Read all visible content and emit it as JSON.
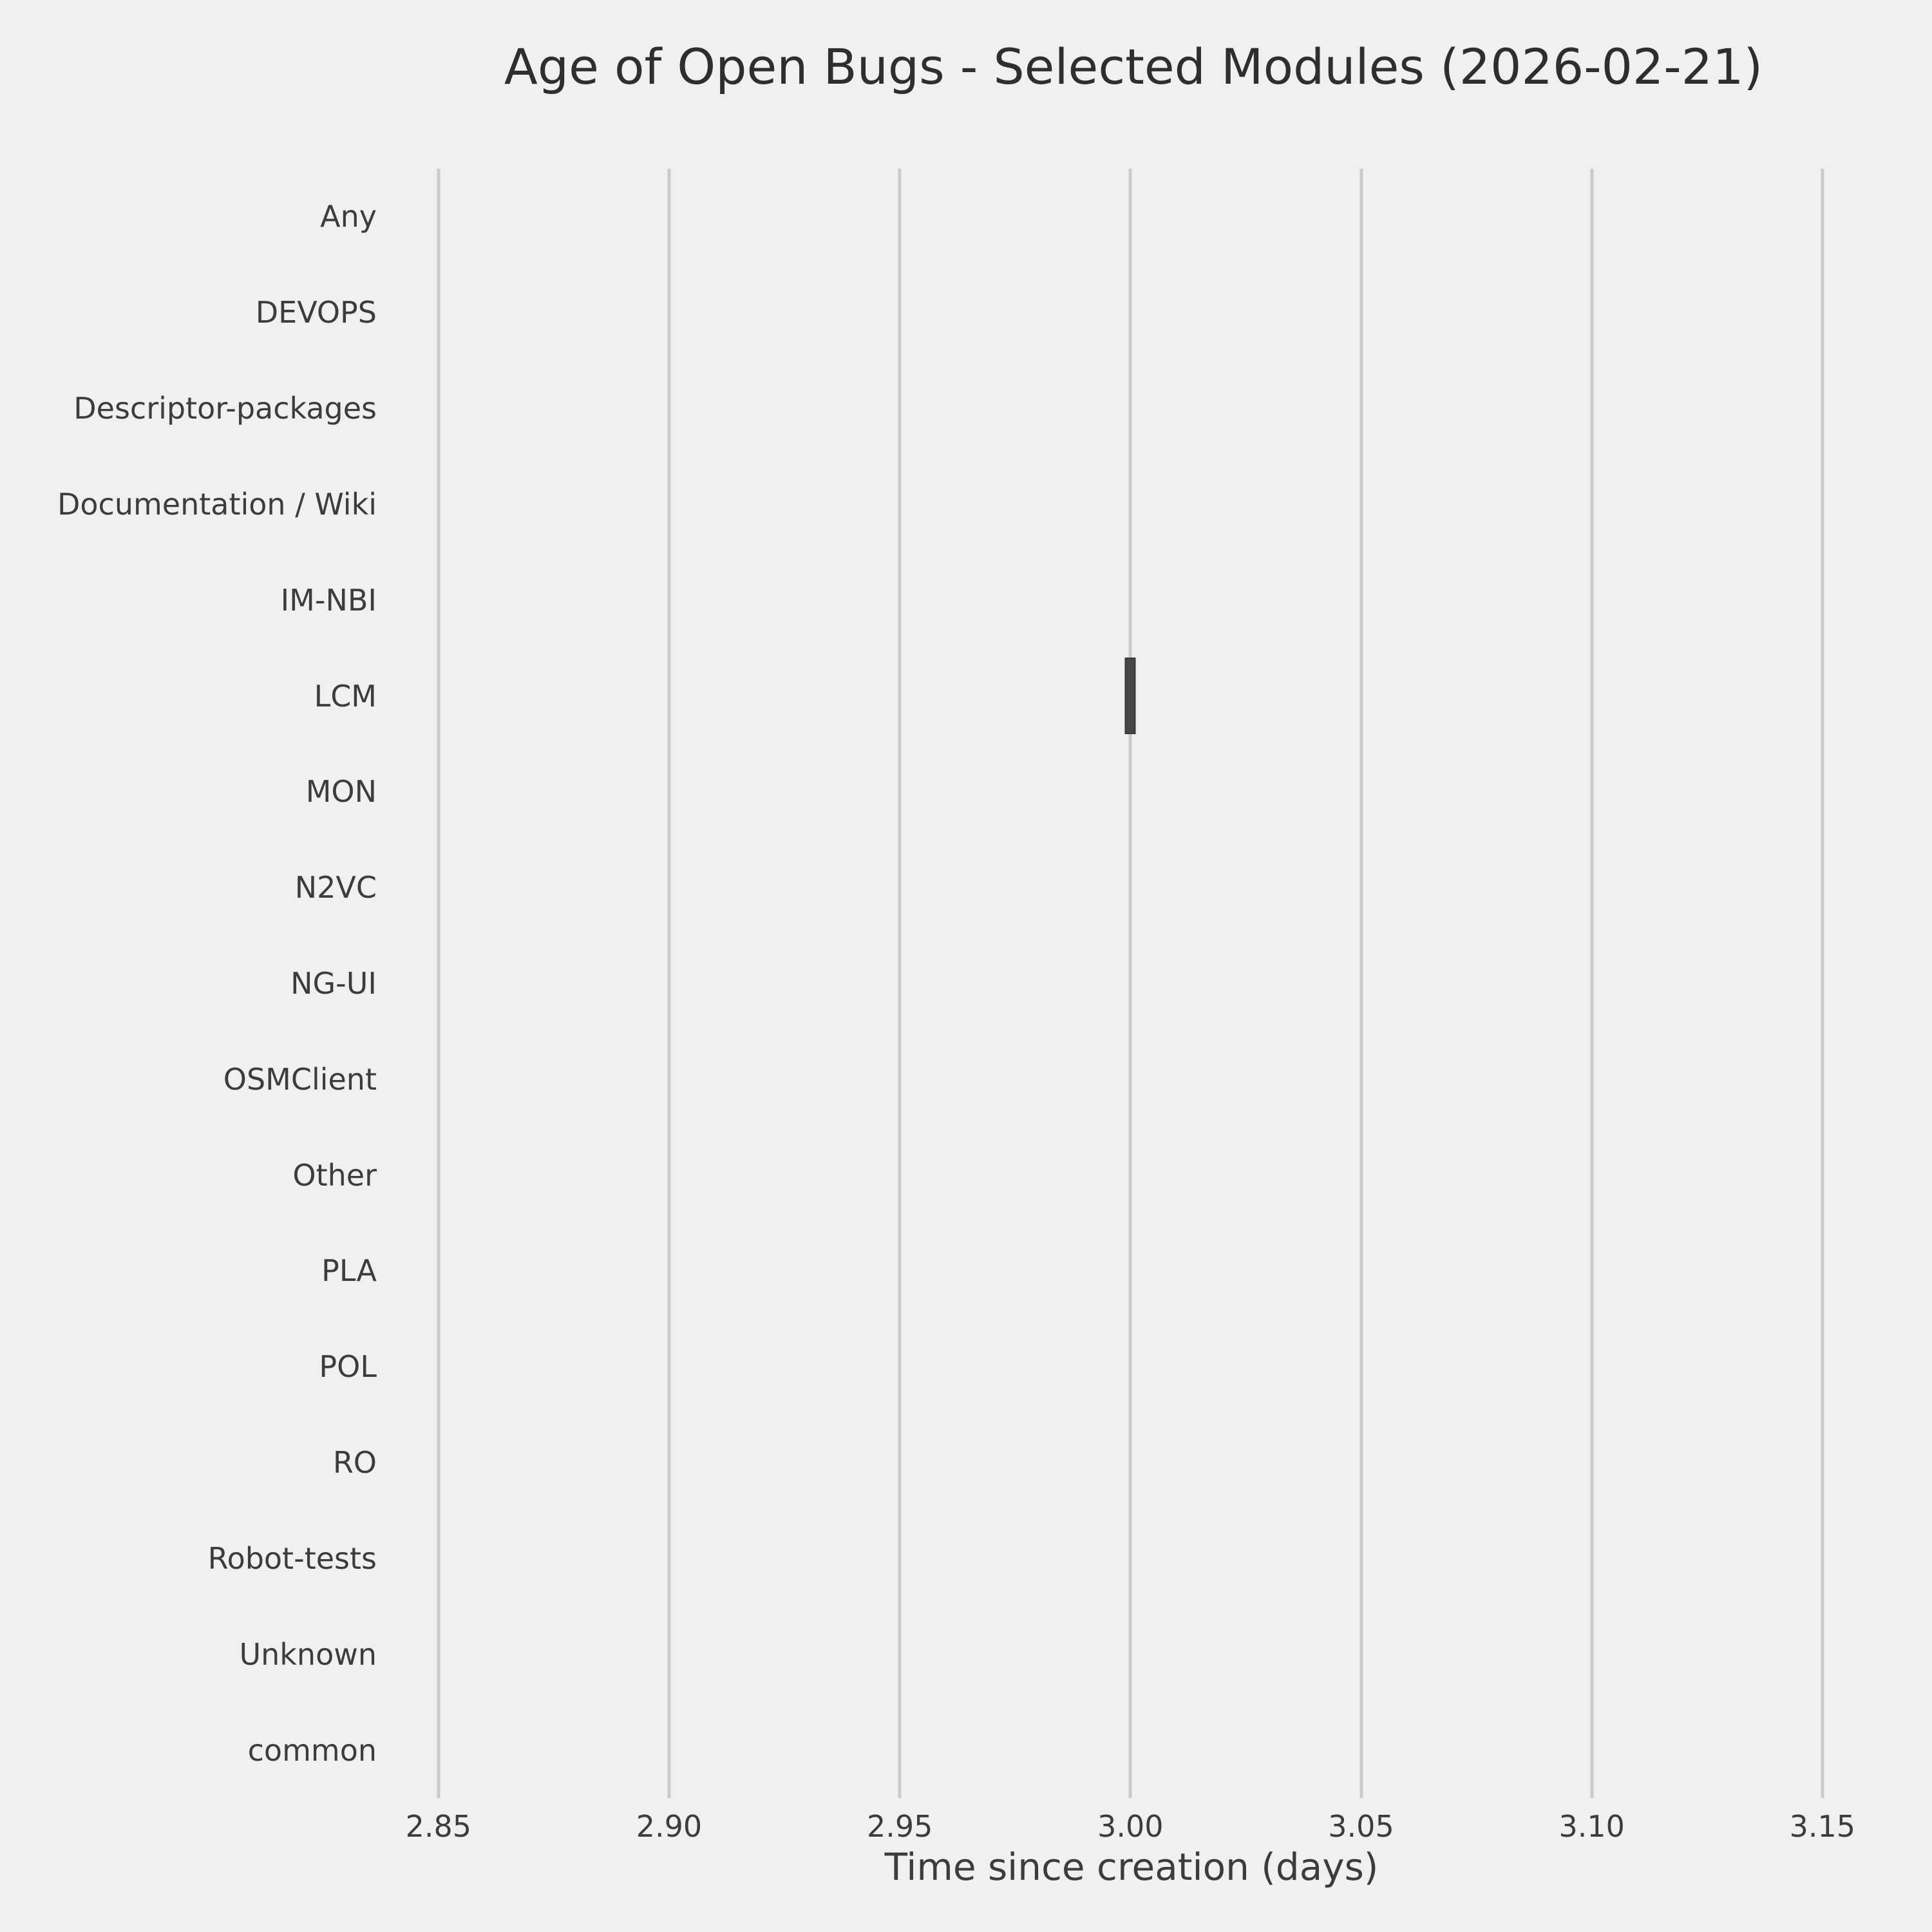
{
  "chart_data": {
    "type": "box",
    "orientation": "horizontal",
    "title": "Age of Open Bugs - Selected Modules (2026-02-21)",
    "xlabel": "Time since creation (days)",
    "ylabel": "",
    "categories": [
      "Any",
      "DEVOPS",
      "Descriptor-packages",
      "Documentation / Wiki",
      "IM-NBI",
      "LCM",
      "MON",
      "N2VC",
      "NG-UI",
      "OSMClient",
      "Other",
      "PLA",
      "POL",
      "RO",
      "Robot-tests",
      "Unknown",
      "common"
    ],
    "x_tick_values": [
      2.85,
      2.9,
      2.95,
      3.0,
      3.05,
      3.1,
      3.15
    ],
    "x_tick_labels": [
      "2.85",
      "2.90",
      "2.95",
      "3.00",
      "3.05",
      "3.10",
      "3.15"
    ],
    "xlim": [
      2.845,
      3.157
    ],
    "grid": "vertical-only",
    "legend_position": "none",
    "boxes": [
      {
        "category": "LCM",
        "whisker_low": 3.0,
        "q1": 3.0,
        "median": 3.0,
        "q3": 3.0,
        "whisker_high": 3.0
      }
    ],
    "colors": {
      "background": "#f0f0f0",
      "grid": "#cbcbcb",
      "box_fill": "#464646",
      "box_edge": "#3a3a3a",
      "text": "#3c3c3c",
      "title": "#2e2e2e"
    }
  }
}
